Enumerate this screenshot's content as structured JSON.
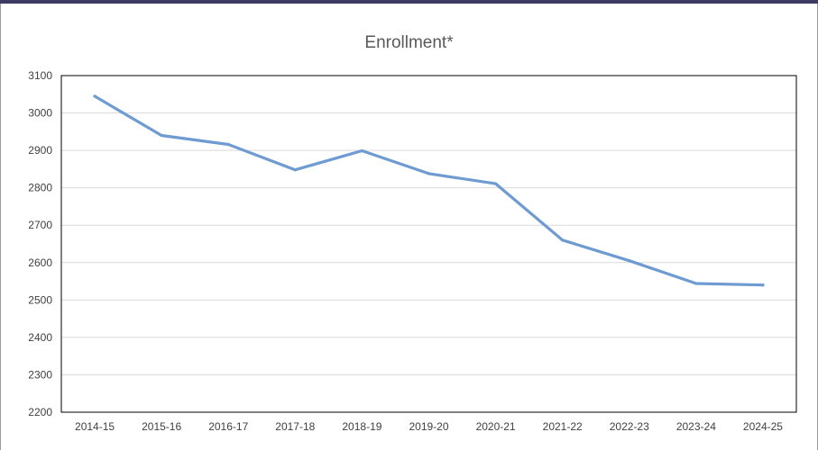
{
  "chart_data": {
    "type": "line",
    "title": "Enrollment*",
    "xlabel": "",
    "ylabel": "",
    "categories": [
      "2014-15",
      "2015-16",
      "2016-17",
      "2017-18",
      "2018-19",
      "2019-20",
      "2020-21",
      "2021-22",
      "2022-23",
      "2023-24",
      "2024-25"
    ],
    "series": [
      {
        "values": [
          3045,
          2940,
          2916,
          2848,
          2899,
          2838,
          2811,
          2660,
          2605,
          2544,
          2540
        ]
      }
    ],
    "ylim": [
      2200,
      3100
    ],
    "yticks": [
      2200,
      2300,
      2400,
      2500,
      2600,
      2700,
      2800,
      2900,
      3000,
      3100
    ],
    "grid": true,
    "legend": "none",
    "line_color": "#6e9bd1",
    "grid_color": "#d9d9d9",
    "axis_color": "#000000"
  }
}
